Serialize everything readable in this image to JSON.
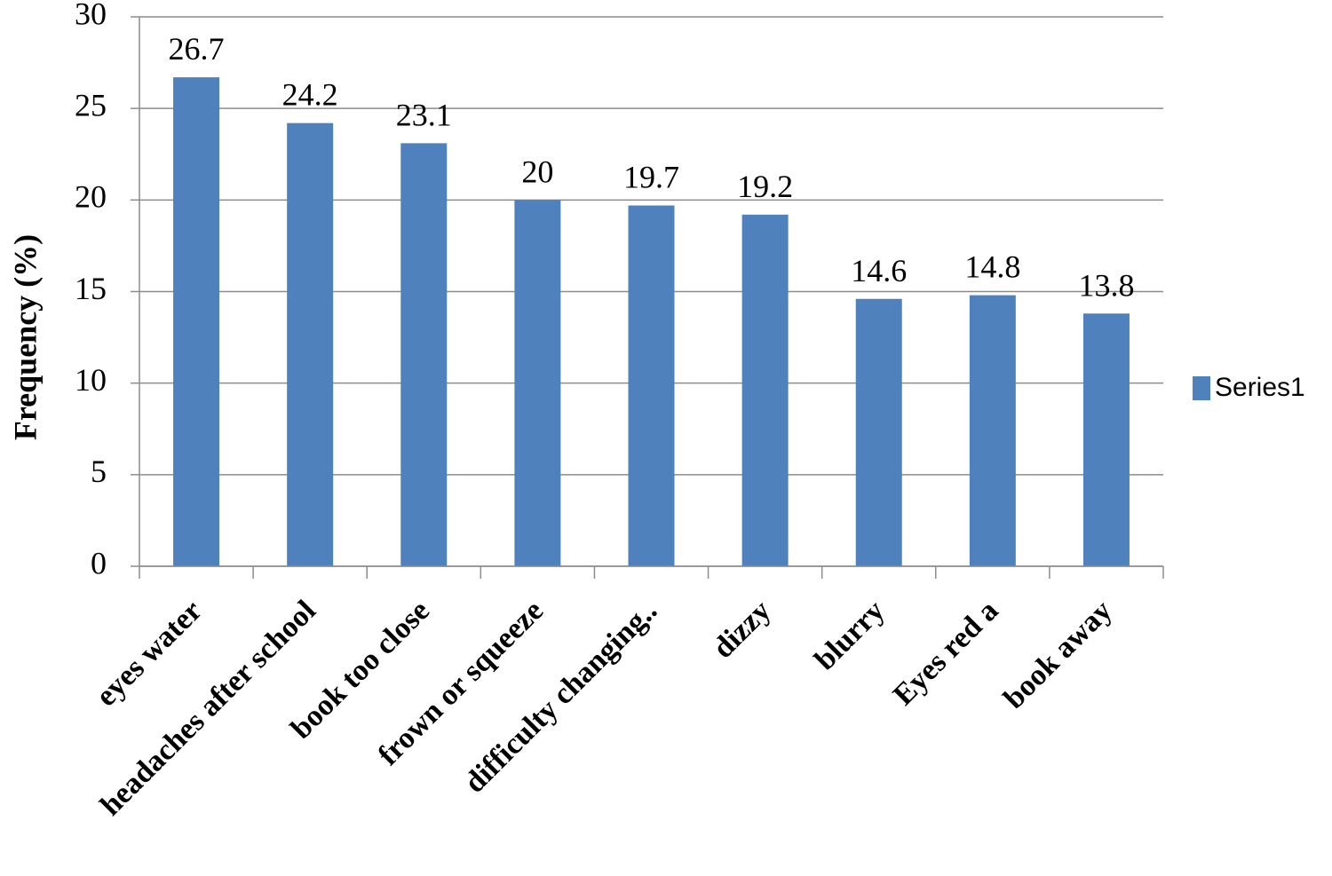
{
  "chart_data": {
    "type": "bar",
    "y_label": "Frequency (%)",
    "categories": [
      "eyes water",
      "headaches after school",
      "book too close",
      "frown or squeeze",
      "difficulty changing..",
      "dizzy",
      "blurry",
      "Eyes red a",
      "book away"
    ],
    "series": [
      {
        "name": "Series1",
        "color": "#4f81bd",
        "values": [
          26.7,
          24.2,
          23.1,
          20,
          19.7,
          19.2,
          14.6,
          14.8,
          13.8
        ]
      }
    ],
    "ylim": [
      0,
      30
    ],
    "yticks": [
      0,
      5,
      10,
      15,
      20,
      25,
      30
    ],
    "grid": true,
    "legend": "right"
  }
}
